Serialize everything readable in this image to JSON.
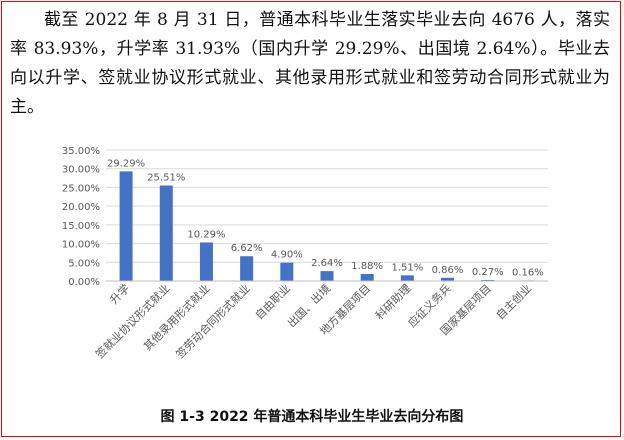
{
  "document": {
    "paragraph": "截至 2022 年 8 月 31 日，普通本科毕业生落实毕业去向 4676 人，落实率 83.93%，升学率 31.93%（国内升学 29.29%、出国境 2.64%）。毕业去向以升学、签就业协议形式就业、其他录用形式就业和签劳动合同形式就业为主。",
    "figure_caption": "图 1-3    2022 年普通本科毕业生毕业去向分布图"
  },
  "chart_data": {
    "type": "bar",
    "categories": [
      "升学",
      "签就业协议形式就业",
      "其他录用形式就业",
      "签劳动合同形式就业",
      "自由职业",
      "出国、出境",
      "地方基层项目",
      "科研助理",
      "应征义务兵",
      "国家基层项目",
      "自主创业"
    ],
    "values": [
      29.29,
      25.51,
      10.29,
      6.62,
      4.9,
      2.64,
      1.88,
      1.51,
      0.86,
      0.27,
      0.16
    ],
    "data_labels": [
      "29.29%",
      "25.51%",
      "10.29%",
      "6.62%",
      "4.90%",
      "2.64%",
      "1.88%",
      "1.51%",
      "0.86%",
      "0.27%",
      "0.16%"
    ],
    "yticks": [
      "0.00%",
      "5.00%",
      "10.00%",
      "15.00%",
      "20.00%",
      "25.00%",
      "30.00%",
      "35.00%"
    ],
    "ylim": [
      0,
      35
    ],
    "grid": true,
    "colors": {
      "bar": "#4472c4",
      "grid": "#d9d9d9",
      "text": "#595959"
    }
  }
}
